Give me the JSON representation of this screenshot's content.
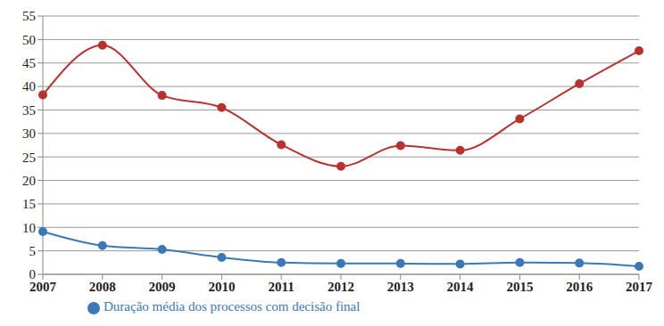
{
  "chart_data": {
    "type": "line",
    "categories": [
      "2007",
      "2008",
      "2009",
      "2010",
      "2011",
      "2012",
      "2013",
      "2014",
      "2015",
      "2016",
      "2017"
    ],
    "series": [
      {
        "color": "#b8312f",
        "marker": "circle",
        "values": [
          38.2,
          48.8,
          38.1,
          35.5,
          27.6,
          23.0,
          27.4,
          26.4,
          33.1,
          40.6,
          47.6
        ]
      },
      {
        "name": "Duração média dos processos com decisão final",
        "color": "#3a78b8",
        "marker": "circle",
        "values": [
          9.1,
          6.1,
          5.3,
          3.6,
          2.5,
          2.3,
          2.3,
          2.2,
          2.5,
          2.4,
          1.7
        ]
      }
    ],
    "ylim": [
      0,
      55
    ],
    "yticks": [
      0,
      5,
      10,
      15,
      20,
      25,
      30,
      35,
      40,
      45,
      50,
      55
    ],
    "grid": true,
    "legend": "bottom"
  }
}
